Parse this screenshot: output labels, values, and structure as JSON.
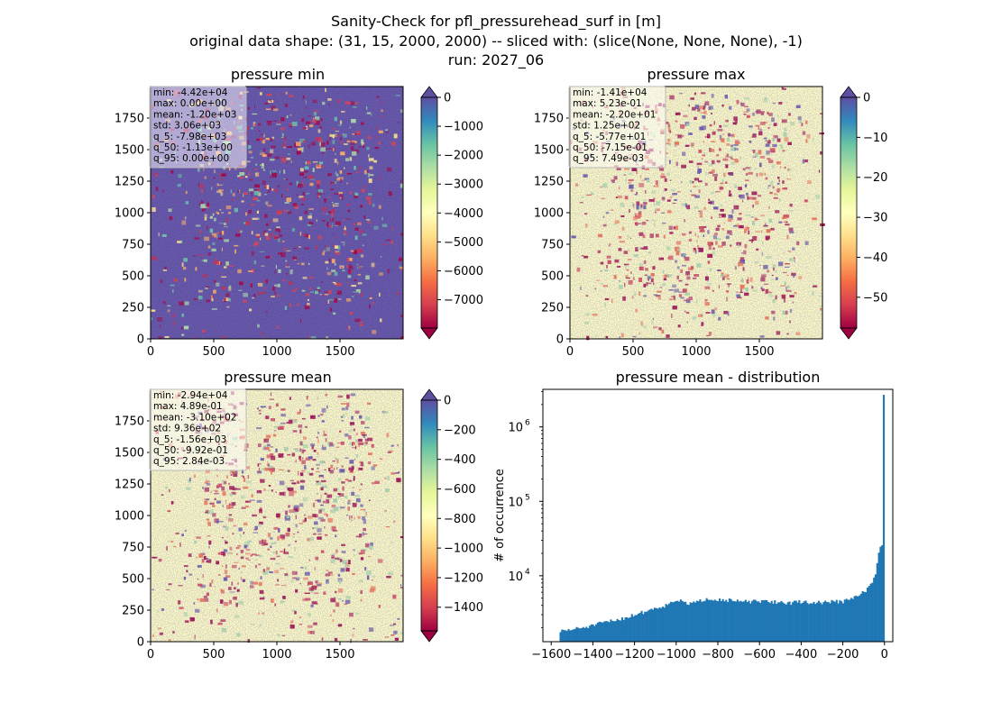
{
  "figure": {
    "title_lines": [
      "Sanity-Check for pfl_pressurehead_surf in [m]",
      "original data shape: (31, 15, 2000, 2000) -- sliced with: (slice(None, None, None), -1)",
      "run: 2027_06"
    ]
  },
  "panels": [
    {
      "id": "min",
      "title": "pressure min",
      "xticks": [
        "0",
        "500",
        "1000",
        "1500"
      ],
      "yticks": [
        "0",
        "250",
        "500",
        "750",
        "1000",
        "1250",
        "1500",
        "1750"
      ],
      "stats": [
        "min: -4.42e+04",
        "max: 0.00e+00",
        "mean: -1.20e+03",
        "std: 3.06e+03",
        "q_5: -7.98e+03",
        "q_50: -1.13e+00",
        "q_95: 0.00e+00"
      ],
      "colorbar": {
        "ticks": [
          "0",
          "−1000",
          "−2000",
          "−3000",
          "−4000",
          "−5000",
          "−6000",
          "−7000"
        ],
        "vmin": -7980,
        "vmax": 0,
        "extend_top": true,
        "extend_bottom": true
      },
      "dominant": "low"
    },
    {
      "id": "max",
      "title": "pressure max",
      "xticks": [
        "0",
        "500",
        "1000",
        "1500"
      ],
      "yticks": [
        "0",
        "250",
        "500",
        "750",
        "1000",
        "1250",
        "1500",
        "1750"
      ],
      "stats": [
        "min: -1.41e+04",
        "max: 5.23e-01",
        "mean: -2.20e+01",
        "std: 1.25e+02",
        "q_5: -5.77e+01",
        "q_50: -7.15e-01",
        "q_95: 7.49e-03"
      ],
      "colorbar": {
        "ticks": [
          "0",
          "−10",
          "−20",
          "−30",
          "−40",
          "−50"
        ],
        "vmin": -57.7,
        "vmax": 0,
        "extend_top": true,
        "extend_bottom": true
      },
      "dominant": "high"
    },
    {
      "id": "mean",
      "title": "pressure mean",
      "xticks": [
        "0",
        "500",
        "1000",
        "1500"
      ],
      "yticks": [
        "0",
        "250",
        "500",
        "750",
        "1000",
        "1250",
        "1500",
        "1750"
      ],
      "stats": [
        "min: -2.94e+04",
        "max: 4.89e-01",
        "mean: -3.10e+02",
        "std: 9.36e+02",
        "q_5: -1.56e+03",
        "q_50: -9.92e-01",
        "q_95: 2.84e-03"
      ],
      "colorbar": {
        "ticks": [
          "0",
          "−200",
          "−400",
          "−600",
          "−800",
          "−1000",
          "−1200",
          "−1400"
        ],
        "vmin": -1560,
        "vmax": 0,
        "extend_top": true,
        "extend_bottom": true
      },
      "dominant": "high"
    }
  ],
  "histogram": {
    "title": "pressure mean - distribution",
    "ylabel": "# of occurrence",
    "xticks": [
      "−1600",
      "−1400",
      "−1200",
      "−1000",
      "−800",
      "−600",
      "−400",
      "−200",
      "0"
    ],
    "ytick_labels": [
      "10",
      "10",
      "10"
    ],
    "ytick_exponents": [
      "4",
      "5",
      "6"
    ],
    "bar_color": "#1f77b4"
  },
  "chart_data": [
    {
      "type": "heatmap",
      "title": "pressure min",
      "xlim": [
        0,
        2000
      ],
      "ylim": [
        0,
        2000
      ],
      "colormap": "Spectral",
      "clim": [
        -7980,
        0
      ]
    },
    {
      "type": "heatmap",
      "title": "pressure max",
      "xlim": [
        0,
        2000
      ],
      "ylim": [
        0,
        2000
      ],
      "colormap": "Spectral",
      "clim": [
        -57.7,
        0
      ]
    },
    {
      "type": "heatmap",
      "title": "pressure mean",
      "xlim": [
        0,
        2000
      ],
      "ylim": [
        0,
        2000
      ],
      "colormap": "Spectral",
      "clim": [
        -1560,
        0
      ]
    },
    {
      "type": "bar",
      "title": "pressure mean - distribution",
      "ylabel": "# of occurrence",
      "yscale": "log",
      "xlim": [
        -1640,
        40
      ],
      "ylim": [
        1300,
        3200000
      ],
      "bin_range": [
        -1560,
        0
      ],
      "x": [
        -1550,
        -1500,
        -1450,
        -1400,
        -1350,
        -1300,
        -1250,
        -1200,
        -1150,
        -1100,
        -1050,
        -1000,
        -950,
        -900,
        -850,
        -800,
        -750,
        -700,
        -650,
        -600,
        -550,
        -500,
        -450,
        -400,
        -350,
        -300,
        -250,
        -200,
        -150,
        -100,
        -75,
        -50,
        -40,
        -30,
        -20,
        -10,
        -5,
        0
      ],
      "values": [
        1800,
        1900,
        2000,
        2150,
        2350,
        2500,
        2700,
        3000,
        3300,
        3700,
        4000,
        4800,
        4200,
        4400,
        5000,
        4800,
        4700,
        4500,
        4500,
        4500,
        4500,
        4400,
        4300,
        4500,
        4300,
        4400,
        4500,
        4500,
        5000,
        6000,
        7000,
        9000,
        12000,
        18000,
        24000,
        27000,
        150000,
        2700000
      ]
    }
  ]
}
